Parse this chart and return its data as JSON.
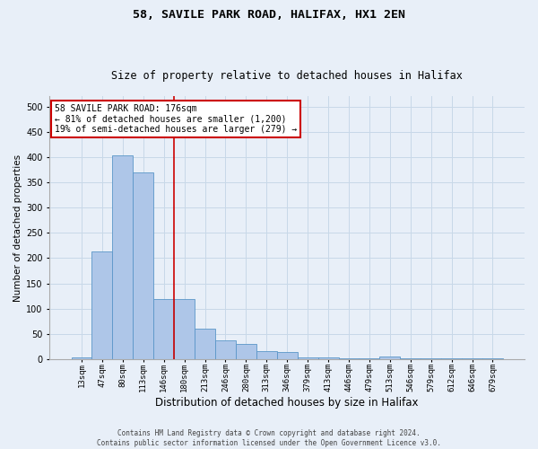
{
  "title_line1": "58, SAVILE PARK ROAD, HALIFAX, HX1 2EN",
  "title_line2": "Size of property relative to detached houses in Halifax",
  "xlabel": "Distribution of detached houses by size in Halifax",
  "ylabel": "Number of detached properties",
  "categories": [
    "13sqm",
    "47sqm",
    "80sqm",
    "113sqm",
    "146sqm",
    "180sqm",
    "213sqm",
    "246sqm",
    "280sqm",
    "313sqm",
    "346sqm",
    "379sqm",
    "413sqm",
    "446sqm",
    "479sqm",
    "513sqm",
    "546sqm",
    "579sqm",
    "612sqm",
    "646sqm",
    "679sqm"
  ],
  "values": [
    3,
    214,
    403,
    370,
    119,
    120,
    60,
    38,
    30,
    16,
    15,
    3,
    3,
    1,
    1,
    6,
    1,
    1,
    1,
    1,
    2
  ],
  "bar_color": "#aec6e8",
  "bar_edge_color": "#5a96c8",
  "grid_color": "#c8d8e8",
  "background_color": "#e8eff8",
  "vline_x_index": 5,
  "vline_color": "#cc0000",
  "annotation_text": "58 SAVILE PARK ROAD: 176sqm\n← 81% of detached houses are smaller (1,200)\n19% of semi-detached houses are larger (279) →",
  "annotation_box_color": "#ffffff",
  "annotation_box_edge": "#cc0000",
  "footer_line1": "Contains HM Land Registry data © Crown copyright and database right 2024.",
  "footer_line2": "Contains public sector information licensed under the Open Government Licence v3.0.",
  "ylim": [
    0,
    520
  ],
  "yticks": [
    0,
    50,
    100,
    150,
    200,
    250,
    300,
    350,
    400,
    450,
    500
  ],
  "title1_fontsize": 9.5,
  "title2_fontsize": 8.5,
  "ylabel_fontsize": 7.5,
  "xlabel_fontsize": 8.5,
  "tick_fontsize": 6.5,
  "annotation_fontsize": 7.0,
  "footer_fontsize": 5.5
}
